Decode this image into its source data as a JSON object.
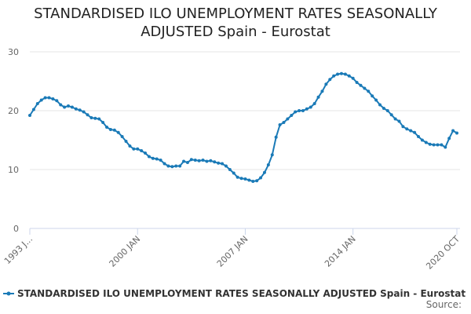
{
  "chart_data": {
    "type": "line",
    "title": "STANDARDISED ILO UNEMPLOYMENT RATES SEASONALLY ADJUSTED Spain - Eurostat",
    "source": "Source:",
    "categories": [
      "1993 J...",
      null,
      null,
      null,
      null,
      null,
      null,
      null,
      null,
      null,
      null,
      null,
      null,
      null,
      null,
      null,
      null,
      null,
      null,
      null,
      null,
      null,
      null,
      null,
      null,
      null,
      null,
      null,
      "2000 JAN",
      null,
      null,
      null,
      null,
      null,
      null,
      null,
      null,
      null,
      null,
      null,
      null,
      null,
      null,
      null,
      null,
      null,
      null,
      null,
      null,
      null,
      null,
      null,
      null,
      null,
      null,
      null,
      "2007 JAN",
      null,
      null,
      null,
      null,
      null,
      null,
      null,
      null,
      null,
      null,
      null,
      null,
      null,
      null,
      null,
      null,
      null,
      null,
      null,
      null,
      null,
      null,
      null,
      null,
      null,
      null,
      null,
      "2014 JAN",
      null,
      null,
      null,
      null,
      null,
      null,
      null,
      null,
      null,
      null,
      null,
      null,
      null,
      null,
      null,
      null,
      null,
      null,
      null,
      null,
      null,
      null,
      null,
      null,
      null,
      null,
      "2020 OCT"
    ],
    "series": [
      {
        "name": "STANDARDISED ILO UNEMPLOYMENT RATES SEASONALLY ADJUSTED Spain - Eurostat",
        "color": "#1a7ab7",
        "values": [
          19.2,
          20.2,
          21.2,
          21.8,
          22.2,
          22.2,
          22.0,
          21.7,
          21.0,
          20.6,
          20.8,
          20.6,
          20.3,
          20.1,
          19.8,
          19.3,
          18.8,
          18.7,
          18.6,
          18.0,
          17.2,
          16.8,
          16.7,
          16.3,
          15.6,
          14.8,
          14.0,
          13.5,
          13.5,
          13.2,
          12.8,
          12.2,
          11.9,
          11.8,
          11.6,
          11.0,
          10.6,
          10.5,
          10.6,
          10.6,
          11.4,
          11.2,
          11.7,
          11.6,
          11.5,
          11.6,
          11.4,
          11.5,
          11.3,
          11.1,
          11.0,
          10.6,
          10.0,
          9.4,
          8.7,
          8.5,
          8.4,
          8.2,
          8.0,
          8.1,
          8.6,
          9.5,
          10.8,
          12.5,
          15.5,
          17.6,
          18.0,
          18.6,
          19.2,
          19.8,
          20.0,
          20.0,
          20.3,
          20.6,
          21.2,
          22.3,
          23.3,
          24.5,
          25.3,
          25.9,
          26.2,
          26.3,
          26.2,
          25.9,
          25.5,
          24.8,
          24.3,
          23.8,
          23.3,
          22.5,
          21.8,
          21.0,
          20.4,
          20.0,
          19.3,
          18.6,
          18.2,
          17.3,
          16.9,
          16.6,
          16.3,
          15.6,
          15.0,
          14.6,
          14.3,
          14.2,
          14.2,
          14.2,
          13.8,
          15.3,
          16.6,
          16.2
        ]
      }
    ],
    "ylim": [
      0,
      30
    ],
    "yticks": [
      0,
      10,
      20,
      30
    ],
    "grid": true
  }
}
